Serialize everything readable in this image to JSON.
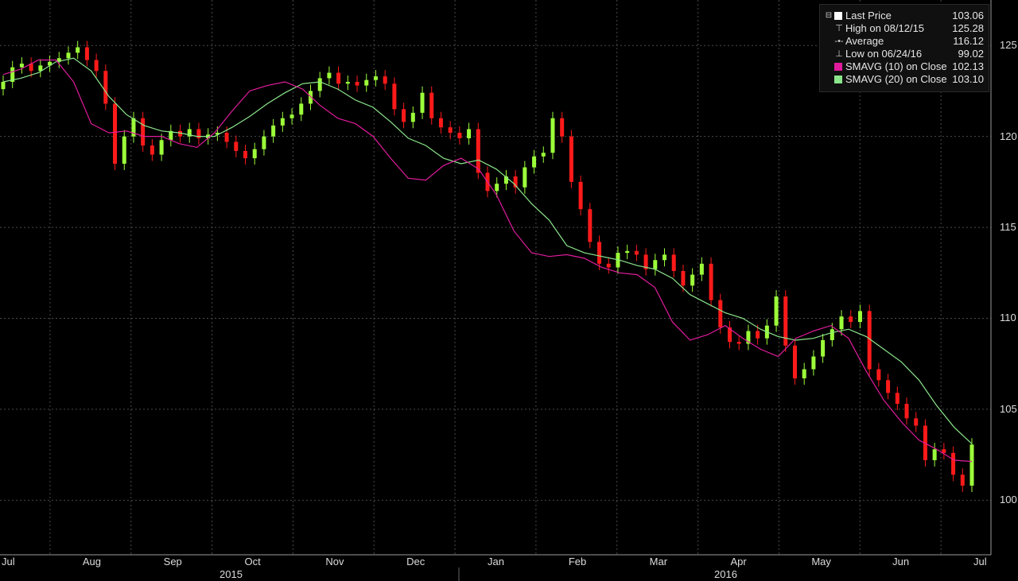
{
  "legend": {
    "items": [
      {
        "label": "Last Price",
        "value": "103.06",
        "icon": "white-square"
      },
      {
        "label": "High on 08/12/15",
        "value": "125.28",
        "icon": "high-marker-icon"
      },
      {
        "label": "Average",
        "value": "116.12",
        "icon": "average-line-icon"
      },
      {
        "label": "Low on 06/24/16",
        "value": "99.02",
        "icon": "low-marker-icon"
      },
      {
        "label": "SMAVG (10) on Close",
        "value": "102.13",
        "icon": "magenta-square"
      },
      {
        "label": "SMAVG (20) on Close",
        "value": "103.10",
        "icon": "green-square"
      }
    ]
  },
  "colors": {
    "background": "#000000",
    "grid": "#4a4a4a",
    "up": "#9cff3a",
    "down": "#ff1a1a",
    "sma10": "#e01c9c",
    "sma20": "#8be68b",
    "text": "#dcdcdc"
  },
  "chart_data": {
    "type": "candlestick",
    "x_labels": [
      "Jul",
      "Aug",
      "Sep",
      "Oct",
      "Nov",
      "Dec",
      "Jan",
      "Feb",
      "Mar",
      "Apr",
      "May",
      "Jun",
      "Jul"
    ],
    "year_labels": [
      "2015",
      "2016"
    ],
    "y_ticks": [
      100,
      105,
      110,
      115,
      120,
      125
    ],
    "ylim": [
      97.0,
      127.5
    ],
    "grid": true,
    "legend_position": "top-right",
    "close_series": [
      {
        "month": "Jul",
        "values": [
          123.0,
          123.8,
          124.0,
          123.6,
          123.9,
          124.1
        ]
      },
      {
        "month": "Aug",
        "values": [
          124.3,
          124.6,
          124.9,
          124.2,
          123.6,
          121.8,
          118.5,
          120.0,
          121.0
        ]
      },
      {
        "month": "Sep",
        "values": [
          119.5,
          119.0,
          119.8,
          120.3,
          120.0,
          120.4,
          119.9,
          120.1,
          120.2
        ]
      },
      {
        "month": "Oct",
        "values": [
          119.7,
          119.2,
          118.8,
          119.3,
          120.0,
          120.6,
          121.0,
          121.2,
          121.8
        ]
      },
      {
        "month": "Nov",
        "values": [
          122.5,
          123.2,
          123.5,
          122.9,
          123.0,
          122.8,
          123.1,
          123.3,
          122.9
        ]
      },
      {
        "month": "Dec",
        "values": [
          121.5,
          120.8,
          121.3,
          122.4,
          121.0,
          120.5,
          120.2,
          119.9,
          120.4
        ]
      },
      {
        "month": "Jan",
        "values": [
          118.0,
          117.0,
          117.4,
          117.8,
          117.2,
          118.3,
          118.9,
          119.1
        ]
      },
      {
        "month": "Feb",
        "values": [
          121.0,
          120.0,
          117.5,
          116.0,
          114.2,
          113.0,
          112.8,
          113.6
        ]
      },
      {
        "month": "Mar",
        "values": [
          113.7,
          113.5,
          112.7,
          113.2,
          113.5,
          112.6,
          111.8,
          112.4,
          113.0
        ]
      },
      {
        "month": "Apr",
        "values": [
          111.0,
          109.5,
          108.7,
          108.6,
          109.3,
          108.9,
          109.6,
          111.2
        ]
      },
      {
        "month": "May",
        "values": [
          108.5,
          106.7,
          107.2,
          107.9,
          108.8,
          109.4,
          110.1,
          109.8,
          110.4
        ]
      },
      {
        "month": "Jun",
        "values": [
          107.2,
          106.6,
          105.9,
          105.3,
          104.5,
          104.1,
          102.2,
          102.8,
          102.6,
          101.4,
          100.8,
          103.06
        ]
      }
    ],
    "sma10": [
      123.4,
      123.7,
      124.2,
      124.2,
      123.0,
      120.7,
      120.2,
      120.3,
      120.0,
      120.0,
      119.6,
      119.4,
      120.2,
      121.4,
      122.5,
      122.8,
      123.0,
      122.6,
      121.7,
      121.0,
      120.7,
      120.0,
      118.8,
      117.7,
      117.6,
      118.4,
      118.8,
      118.2,
      116.8,
      114.8,
      113.6,
      113.4,
      113.5,
      113.3,
      112.8,
      112.5,
      112.4,
      111.7,
      109.8,
      108.8,
      109.1,
      109.6,
      108.9,
      108.3,
      107.9,
      108.9,
      109.3,
      109.6,
      108.9,
      107.1,
      105.5,
      104.3,
      103.3,
      102.8,
      102.2,
      102.13
    ],
    "sma20": [
      123.0,
      123.2,
      123.5,
      124.1,
      124.3,
      123.6,
      122.2,
      121.2,
      120.6,
      120.3,
      120.2,
      120.0,
      120.0,
      120.5,
      121.1,
      121.8,
      122.4,
      122.9,
      123.0,
      122.6,
      122.0,
      121.6,
      120.8,
      119.9,
      119.5,
      118.8,
      118.5,
      118.7,
      118.2,
      117.4,
      116.3,
      115.4,
      114.0,
      113.6,
      113.4,
      113.2,
      112.9,
      112.7,
      112.2,
      111.3,
      110.8,
      110.3,
      110.0,
      109.4,
      109.0,
      108.8,
      108.9,
      109.2,
      109.4,
      109.0,
      108.3,
      107.6,
      106.6,
      105.2,
      104.0,
      103.1
    ]
  }
}
